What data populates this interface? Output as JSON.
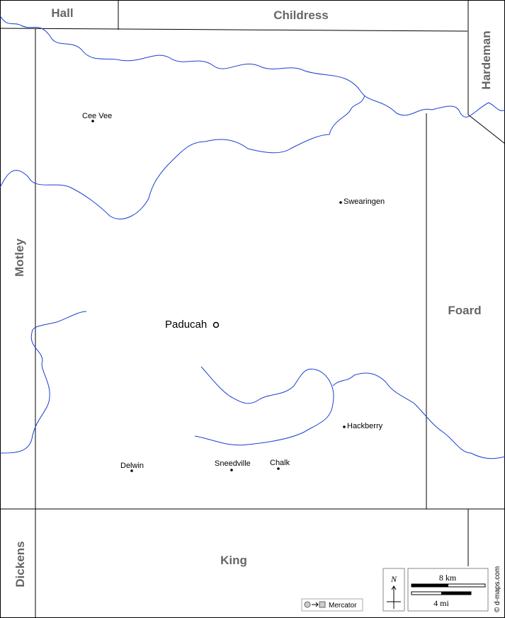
{
  "counties": [
    "Hall",
    "Childress",
    "Hardeman",
    "Motley",
    "Foard",
    "Dickens",
    "King"
  ],
  "towns": [
    "Cee Vee",
    "Swearingen",
    "Paducah",
    "Hackberry",
    "Delwin",
    "Sneedville",
    "Chalk"
  ],
  "compass": "N",
  "scale": [
    "8 km",
    "4 mi"
  ],
  "projection": "Mercator",
  "credit": "© d-maps.com"
}
